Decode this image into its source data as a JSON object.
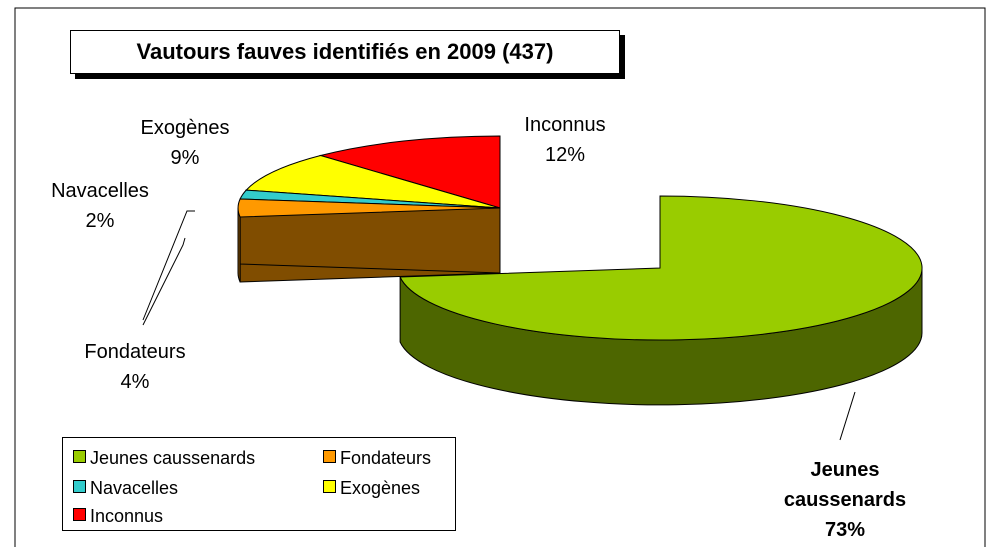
{
  "chart_data": {
    "type": "pie",
    "title": "Vautours fauves identifiés en 2009 (437)",
    "categories": [
      "Jeunes caussenards",
      "Fondateurs",
      "Navacelles",
      "Exogènes",
      "Inconnus"
    ],
    "values": [
      73,
      4,
      2,
      9,
      12
    ],
    "value_labels": [
      "73%",
      "4%",
      "2%",
      "9%",
      "12%"
    ],
    "colors": [
      "#99cc00",
      "#ff9900",
      "#33cccc",
      "#ffff00",
      "#ff0000"
    ]
  }
}
